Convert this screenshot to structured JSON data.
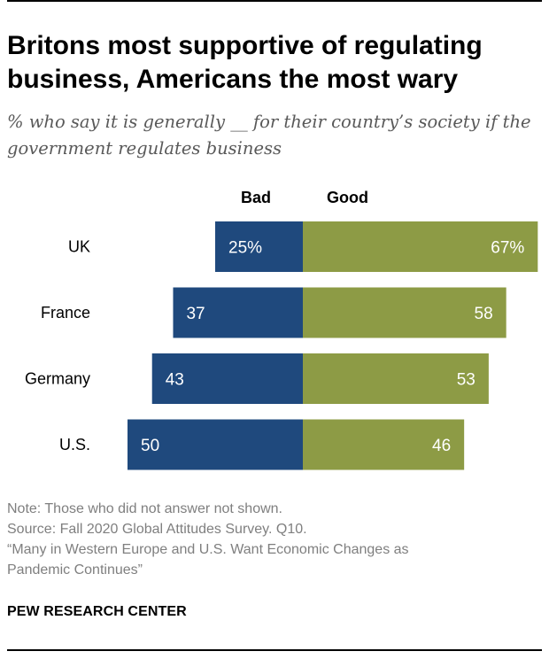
{
  "header": {
    "title": "Britons most supportive of regulating business, Americans the most wary",
    "subtitle": "% who say it is generally __ for their country’s society if the government regulates business"
  },
  "chart_data": {
    "type": "bar",
    "orientation": "horizontal-diverging",
    "categories": [
      "UK",
      "France",
      "Germany",
      "U.S."
    ],
    "series": [
      {
        "name": "Bad",
        "values": [
          25,
          37,
          43,
          50
        ],
        "color": "#1f497d"
      },
      {
        "name": "Good",
        "values": [
          67,
          58,
          53,
          46
        ],
        "color": "#8d9b45"
      }
    ],
    "value_labels": {
      "Bad": [
        "25%",
        "37",
        "43",
        "50"
      ],
      "Good": [
        "67%",
        "58",
        "53",
        "46"
      ]
    },
    "title": "Britons most supportive of regulating business, Americans the most wary",
    "xlabel": "",
    "ylabel": "",
    "grid": false,
    "legend": "top"
  },
  "footer": {
    "note": "Note: Those who did not answer not shown.",
    "source": "Source: Fall 2020 Global Attitudes Survey. Q10.",
    "report_line1": "“Many in Western Europe and U.S. Want Economic Changes as",
    "report_line2": "Pandemic Continues”",
    "org": "PEW RESEARCH CENTER"
  }
}
